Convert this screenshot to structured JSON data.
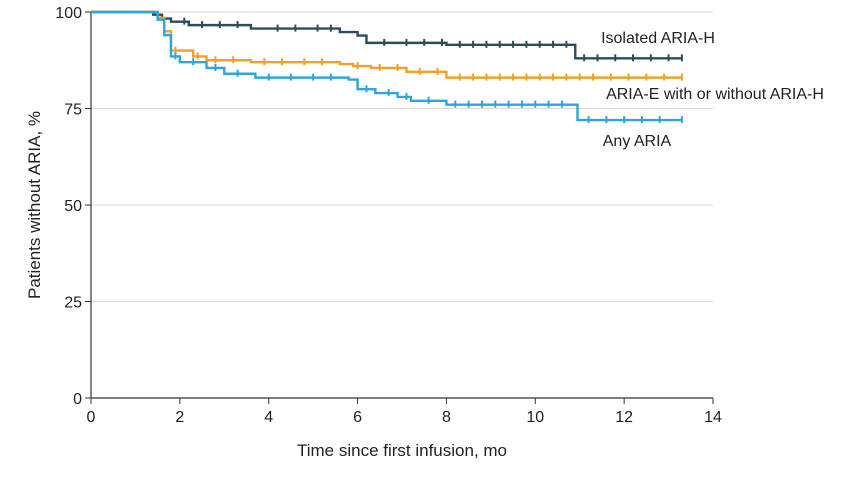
{
  "chart_data": {
    "type": "line",
    "title": "",
    "xlabel": "Time since first infusion, mo",
    "ylabel": "Patients without ARIA, %",
    "xlim": [
      0,
      14
    ],
    "ylim": [
      0,
      100
    ],
    "xticks": [
      0,
      2,
      4,
      6,
      8,
      10,
      12,
      14
    ],
    "yticks": [
      0,
      25,
      50,
      75,
      100
    ],
    "grid": "horizontal",
    "series": [
      {
        "name": "Isolated ARIA-H",
        "color": "#2e4b5a",
        "x": [
          0,
          1.4,
          1.6,
          1.8,
          2.2,
          3.6,
          5.6,
          6.0,
          6.2,
          8.0,
          10.9,
          13.3
        ],
        "y": [
          100,
          99.3,
          98.3,
          97.5,
          96.6,
          95.7,
          94.8,
          93.9,
          92.0,
          91.5,
          88.0,
          88.0
        ],
        "censor_x": [
          1.5,
          2.1,
          2.5,
          2.9,
          3.3,
          4.2,
          4.6,
          5.1,
          5.4,
          6.6,
          7.1,
          7.5,
          7.9,
          8.3,
          8.6,
          8.9,
          9.2,
          9.5,
          9.8,
          10.1,
          10.4,
          10.7,
          11.1,
          11.4,
          11.8,
          12.2,
          12.6,
          13.0,
          13.3
        ]
      },
      {
        "name": "ARIA-E with or without ARIA-H",
        "color": "#f0a127",
        "x": [
          0,
          1.5,
          1.65,
          1.8,
          2.3,
          2.6,
          3.6,
          5.6,
          5.9,
          6.3,
          7.1,
          8.0,
          13.3
        ],
        "y": [
          100,
          98.5,
          95.0,
          90.0,
          88.5,
          87.5,
          87.0,
          86.5,
          86.0,
          85.5,
          84.5,
          83.0,
          83.0
        ],
        "censor_x": [
          1.9,
          2.4,
          2.8,
          3.2,
          3.9,
          4.3,
          4.8,
          5.2,
          6.0,
          6.5,
          6.9,
          7.4,
          7.8,
          8.3,
          8.6,
          8.9,
          9.2,
          9.5,
          9.8,
          10.1,
          10.4,
          10.7,
          11.0,
          11.3,
          11.7,
          12.1,
          12.5,
          12.9,
          13.3
        ]
      },
      {
        "name": "Any ARIA",
        "color": "#2ea6dc",
        "x": [
          0,
          1.5,
          1.65,
          1.8,
          2.0,
          2.6,
          3.0,
          3.7,
          5.8,
          6.0,
          6.4,
          6.9,
          7.2,
          8.0,
          10.95,
          13.3
        ],
        "y": [
          100,
          98.0,
          94.0,
          88.5,
          87.0,
          85.5,
          84.0,
          83.0,
          82.5,
          80.0,
          79.0,
          78.0,
          77.0,
          76.0,
          72.0,
          72.0
        ],
        "censor_x": [
          1.9,
          2.3,
          2.8,
          3.3,
          4.0,
          4.5,
          5.0,
          5.4,
          6.2,
          6.7,
          7.1,
          7.6,
          8.2,
          8.5,
          8.8,
          9.1,
          9.4,
          9.7,
          10.0,
          10.3,
          10.6,
          11.2,
          11.6,
          12.0,
          12.4,
          12.8,
          13.3
        ]
      }
    ]
  }
}
